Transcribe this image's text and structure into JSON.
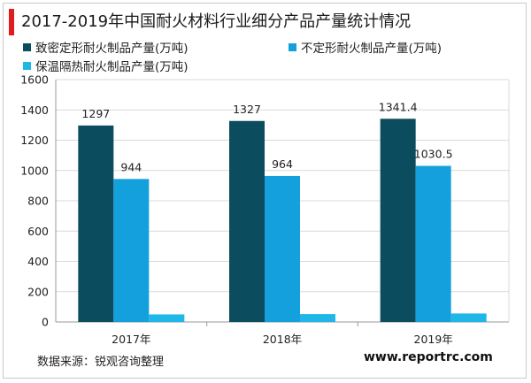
{
  "title": "2017-2019年中国耐火材料行业细分产品产量统计情况",
  "source_note": "数据来源：锐观咨询整理",
  "website": "www.reportrc.com",
  "colors": {
    "accent": "#e01c1c",
    "series": [
      "#0b4c5f",
      "#14a0dc",
      "#1fb6e8"
    ],
    "grid": "#d9d9d9",
    "axis": "#9a9a9a"
  },
  "chart_data": {
    "type": "bar",
    "title": "2017-2019年中国耐火材料行业细分产品产量统计情况",
    "xlabel": "",
    "ylabel": "",
    "categories": [
      "2017年",
      "2018年",
      "2019年"
    ],
    "series": [
      {
        "name": "致密定形耐火制品产量(万吨)",
        "values": [
          1297,
          1327,
          1341.4
        ],
        "labels": [
          "1297",
          "1327",
          "1341.4"
        ]
      },
      {
        "name": "不定形耐火制品产量(万吨)",
        "values": [
          944,
          964,
          1030.5
        ],
        "labels": [
          "944",
          "964",
          "1030.5"
        ]
      },
      {
        "name": "保温隔热耐火制品产量(万吨)",
        "values": [
          50,
          52,
          56
        ],
        "labels": [
          "",
          "",
          ""
        ]
      }
    ],
    "ylim": [
      0,
      1600
    ],
    "yticks": [
      0,
      200,
      400,
      600,
      800,
      1000,
      1200,
      1400,
      1600
    ],
    "grid": true,
    "legend_position": "top"
  }
}
